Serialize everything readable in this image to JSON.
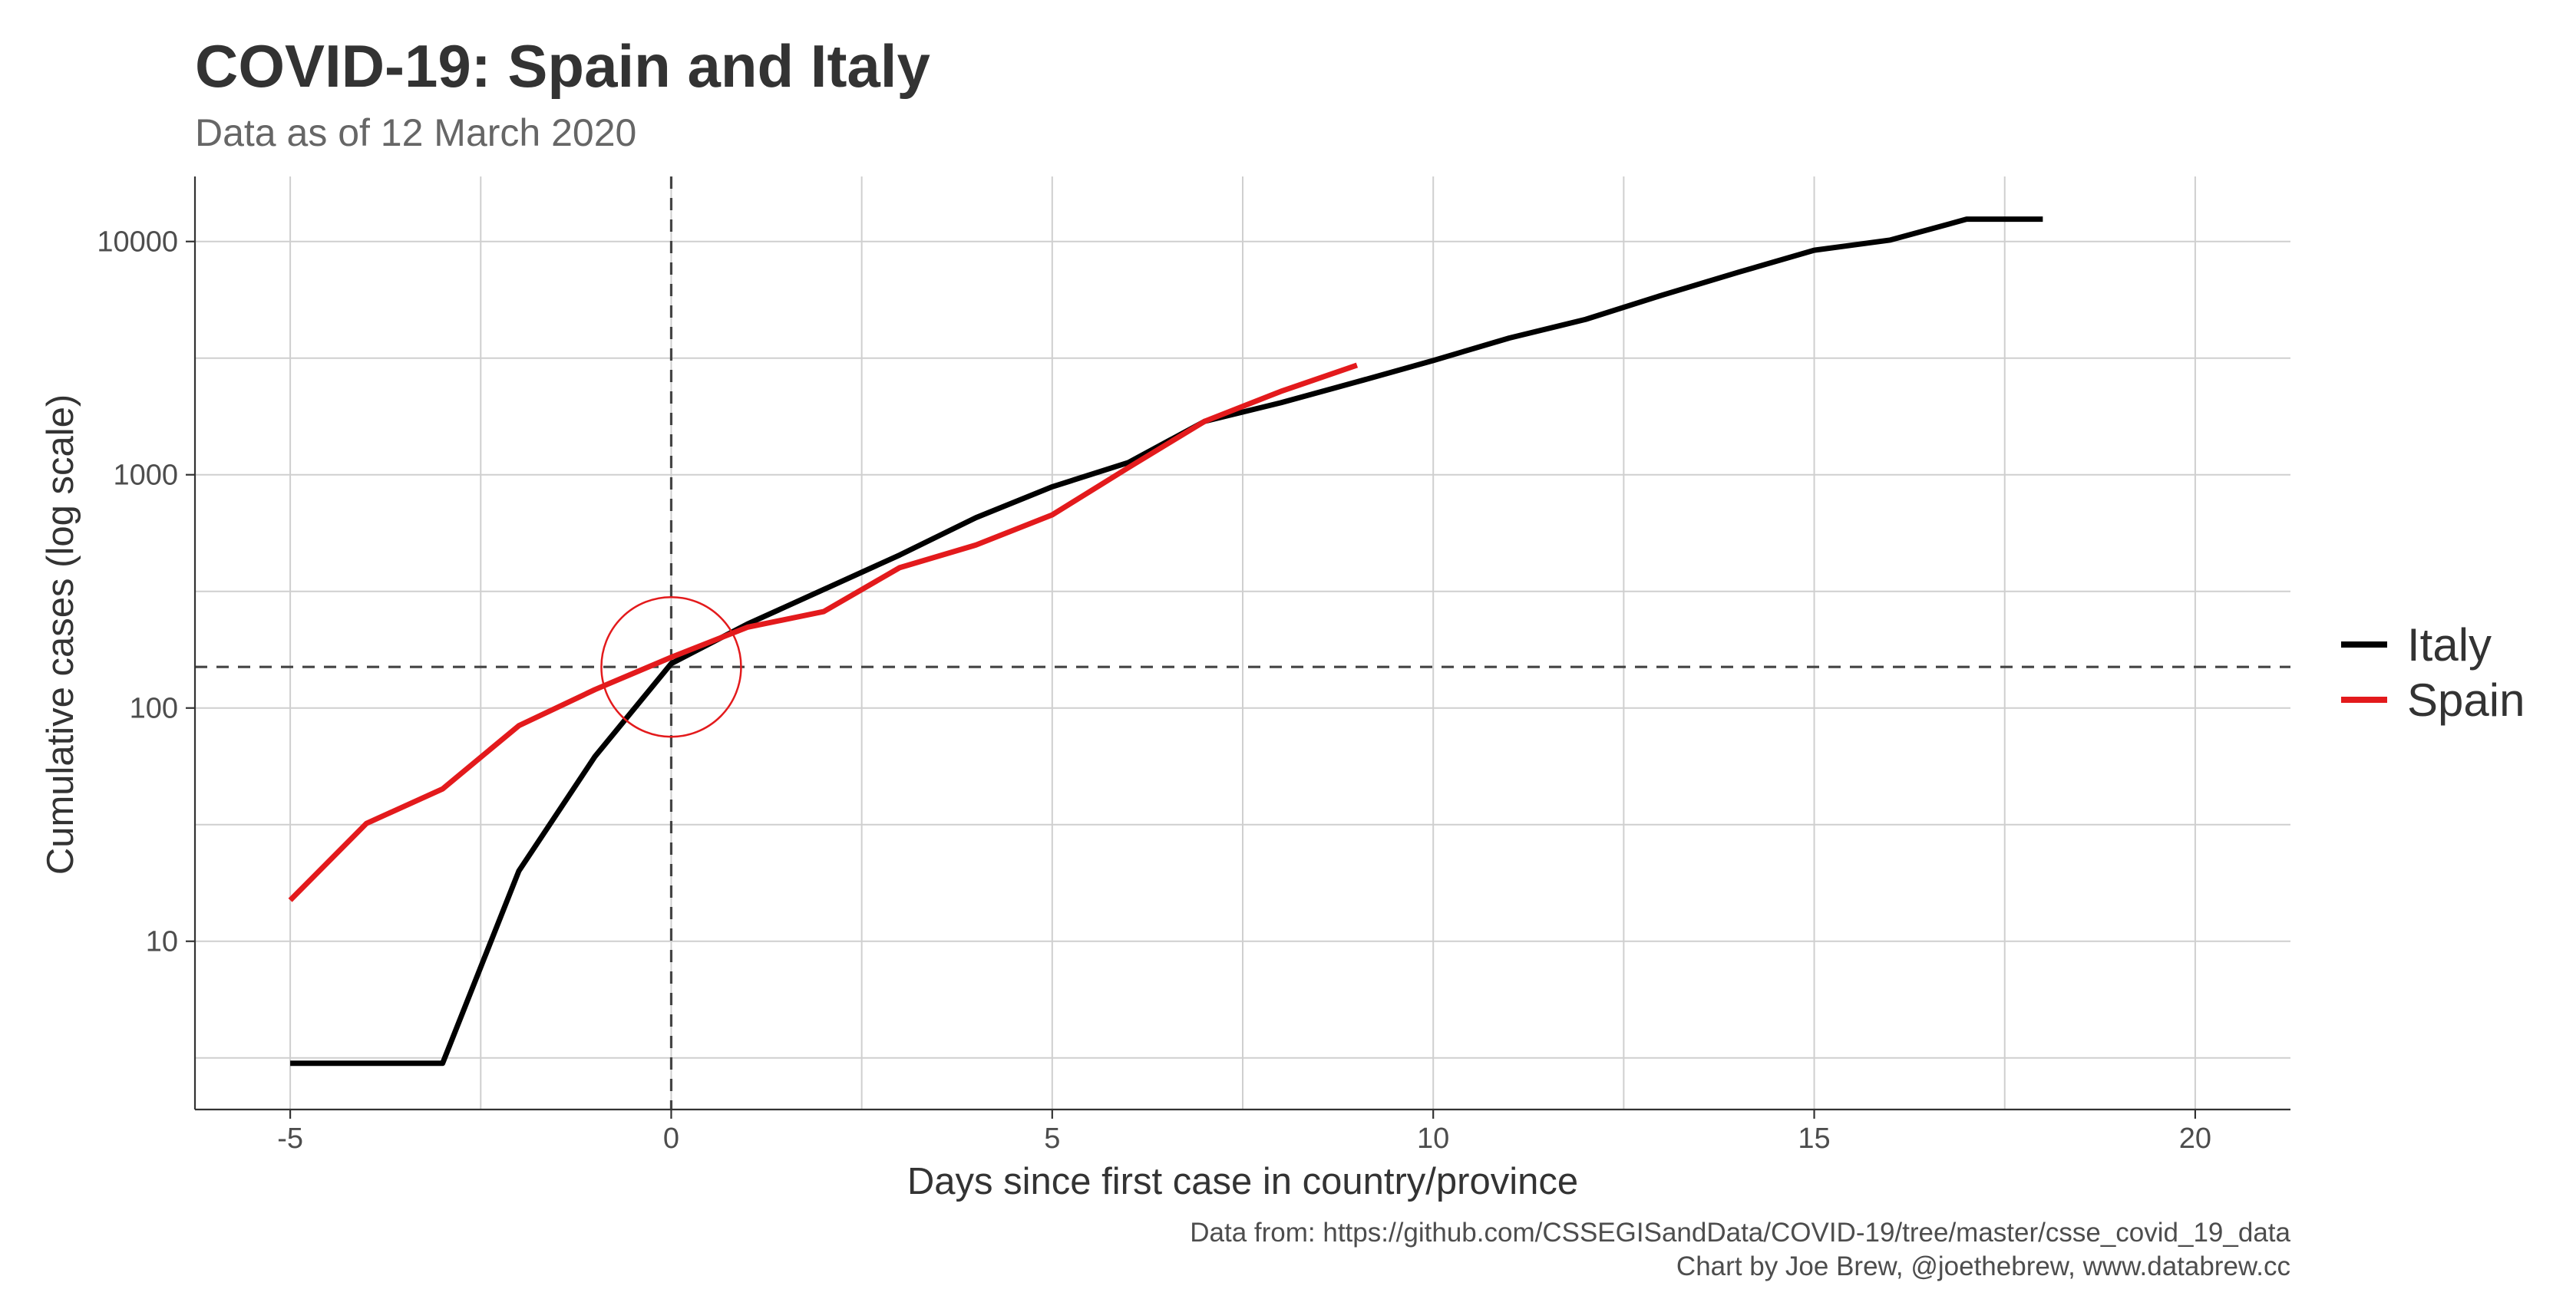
{
  "chart_data": {
    "type": "line",
    "title": "COVID-19: Spain and Italy",
    "subtitle": "Data as of 12 March 2020",
    "xlabel": "Days since first case in country/province",
    "ylabel": "Cumulative cases (log scale)",
    "xlim": [
      -6.25,
      21.25
    ],
    "ylim": [
      1.9,
      19000
    ],
    "y_scale": "log10",
    "x_ticks": [
      -5,
      0,
      5,
      10,
      15,
      20
    ],
    "x_tick_labels": [
      "-5",
      "0",
      "5",
      "10",
      "15",
      "20"
    ],
    "y_ticks": [
      10,
      100,
      1000,
      10000
    ],
    "y_tick_labels": [
      "10",
      "100",
      "1000",
      "10000"
    ],
    "grid": "major and minor, both axes",
    "legend_position": "right",
    "reference_lines": {
      "vertical_x": 0,
      "horizontal_y": 150,
      "style": "dashed"
    },
    "annotation": {
      "type": "circle",
      "x": 0,
      "y": 150,
      "color": "#e31a1c"
    },
    "series": [
      {
        "name": "Italy",
        "color": "#000000",
        "x": [
          -5,
          -4,
          -3,
          -2,
          -1,
          0,
          1,
          2,
          3,
          4,
          5,
          6,
          7,
          8,
          9,
          10,
          11,
          12,
          13,
          14,
          15,
          16,
          17,
          18
        ],
        "y": [
          3,
          3,
          3,
          20,
          62,
          155,
          229,
          322,
          453,
          655,
          888,
          1128,
          1694,
          2036,
          2502,
          3089,
          3858,
          4636,
          5883,
          7375,
          9172,
          10149,
          12462,
          12462
        ]
      },
      {
        "name": "Spain",
        "color": "#e31a1c",
        "x": [
          -5,
          -4,
          -3,
          -2,
          -1,
          0,
          1,
          2,
          3,
          4,
          5,
          6,
          7,
          8,
          9
        ],
        "y": [
          15,
          32,
          45,
          84,
          120,
          165,
          222,
          259,
          400,
          500,
          673,
          1073,
          1695,
          2277,
          2950
        ]
      }
    ],
    "caption_lines": [
      "Data from: https://github.com/CSSEGISandData/COVID-19/tree/master/csse_covid_19_data",
      "Chart by Joe Brew, @joethebrew, www.databrew.cc"
    ]
  }
}
